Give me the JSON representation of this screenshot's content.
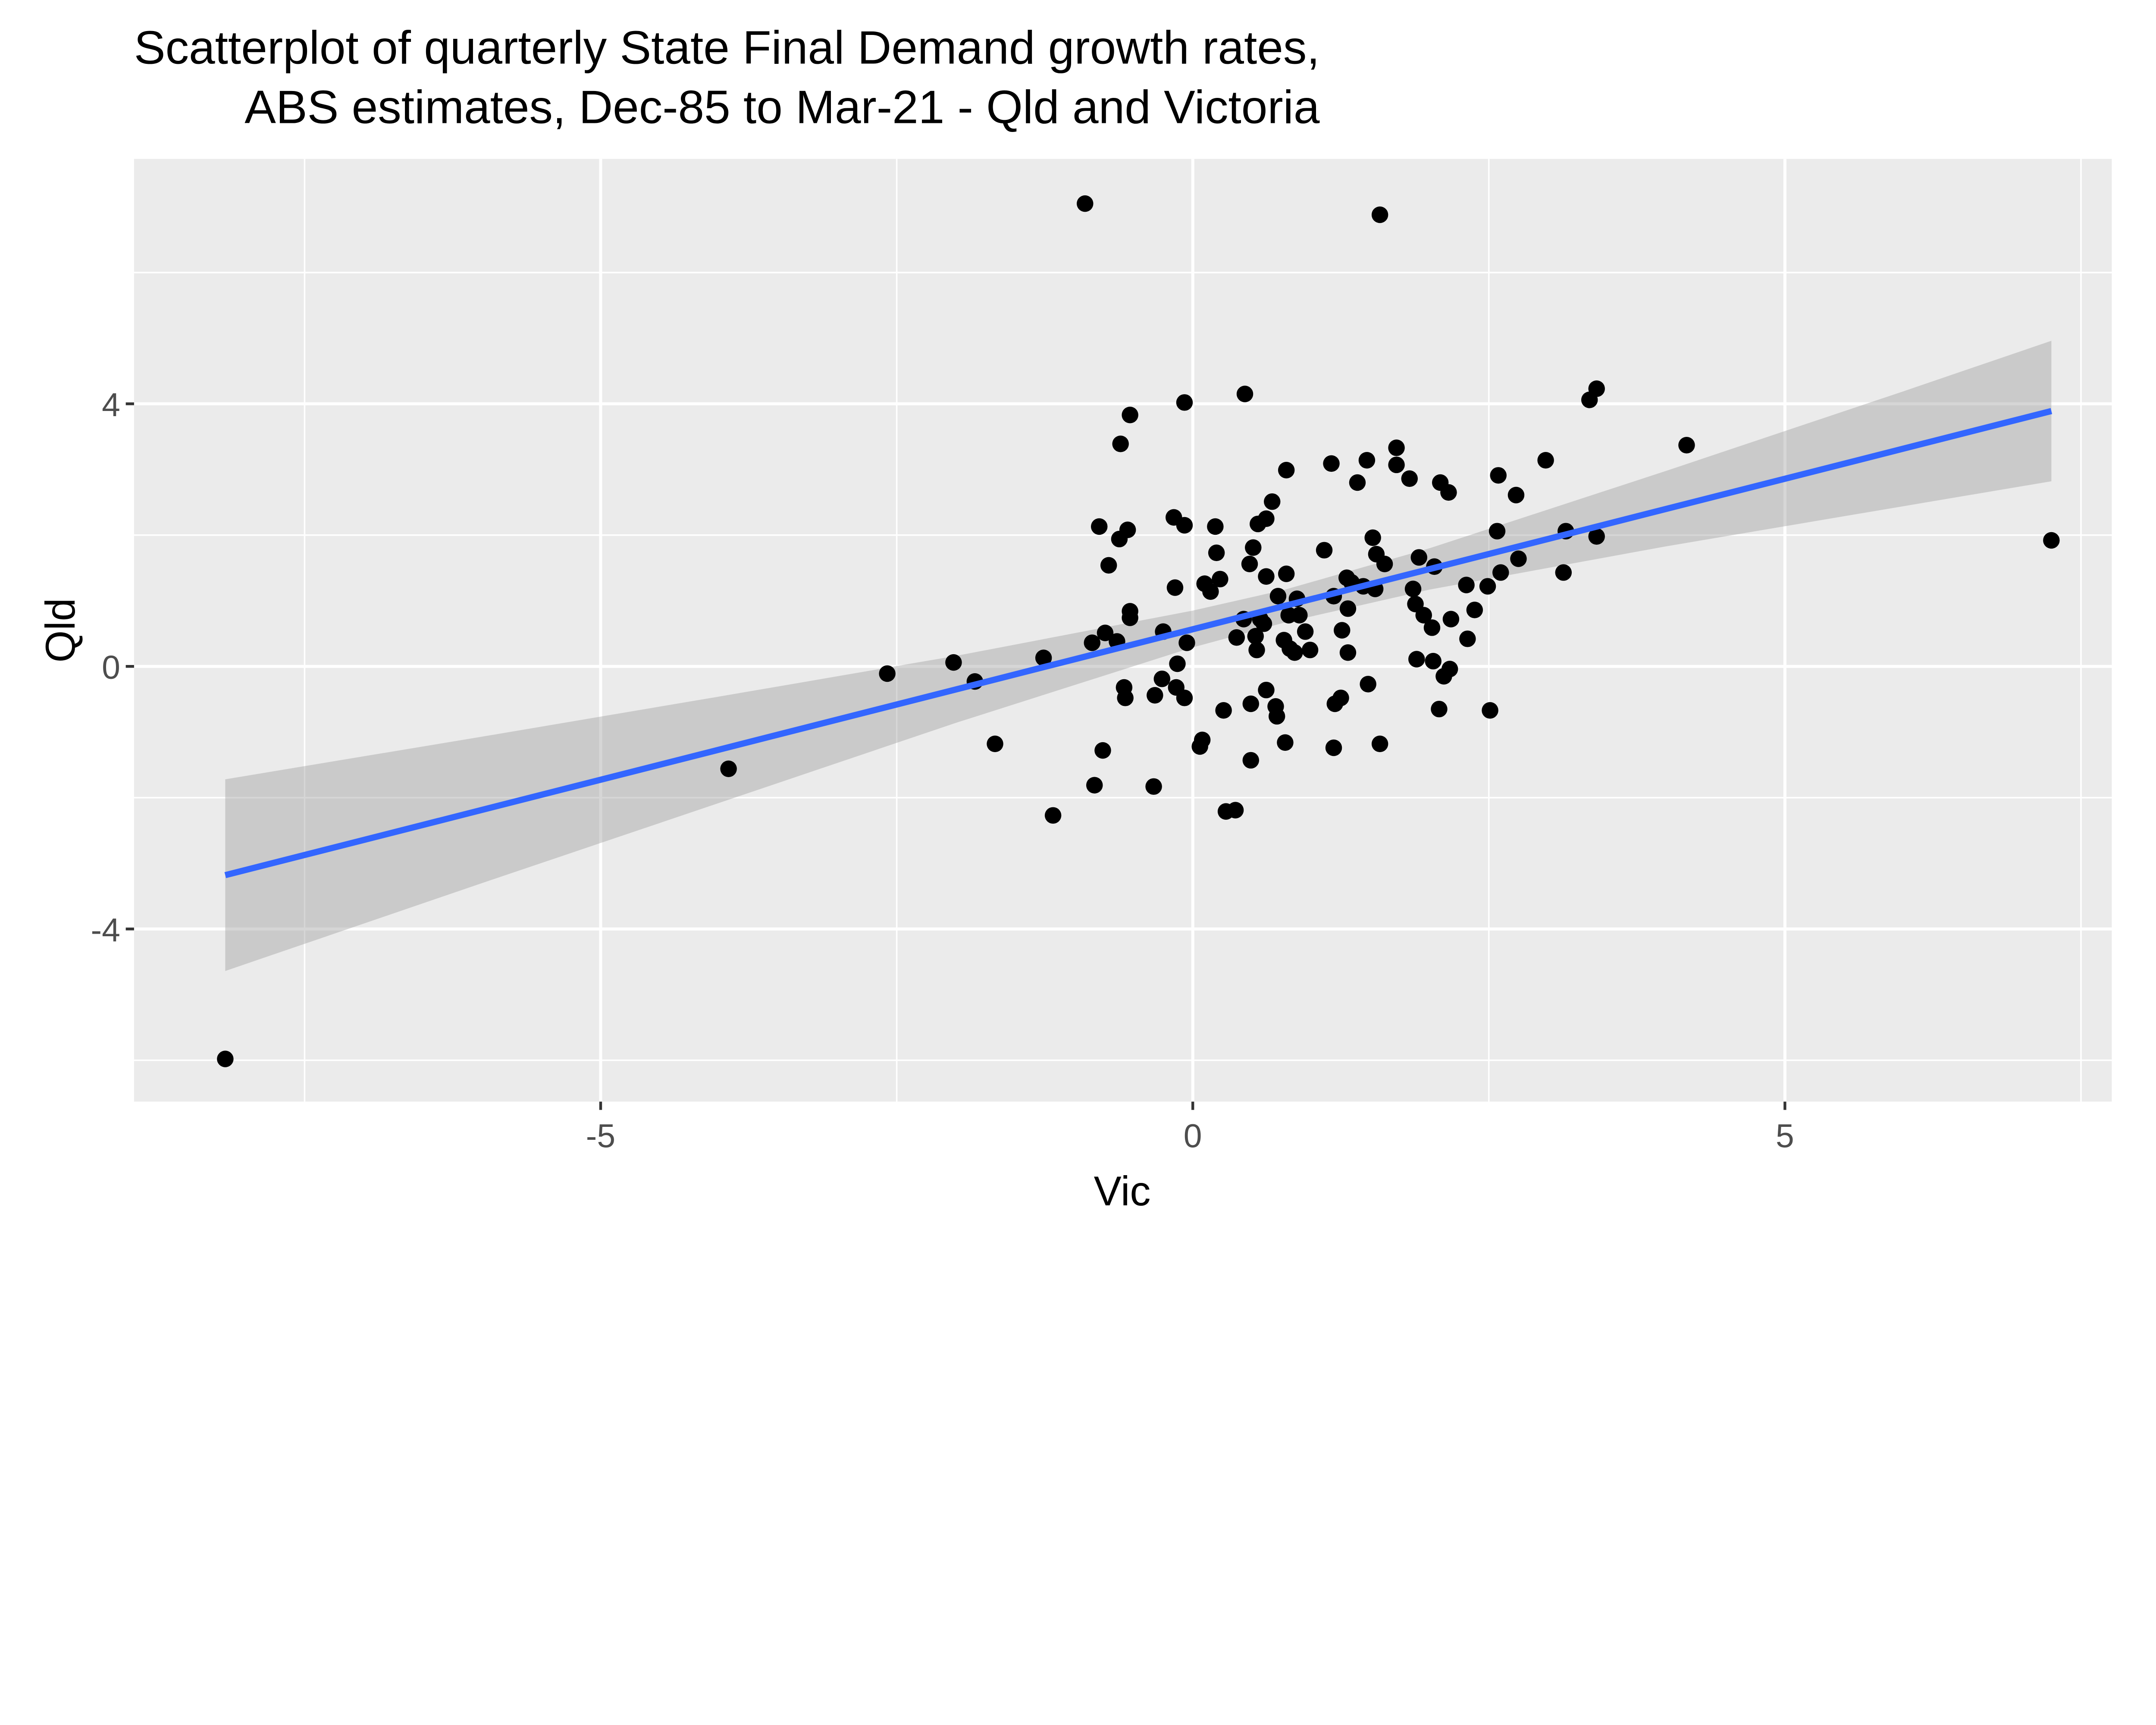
{
  "chart_data": {
    "type": "scatter",
    "title": [
      "Scatterplot of quarterly State Final Demand growth rates,",
      "ABS estimates, Dec-85 to Mar-21 - Qld and Victoria"
    ],
    "xlabel": "Vic",
    "ylabel": "Qld",
    "xlim": [
      -8.94,
      7.76
    ],
    "ylim": [
      -6.63,
      7.73
    ],
    "xticks": [
      -5,
      0,
      5
    ],
    "yticks": [
      -4,
      0,
      4
    ],
    "x_minor": [
      -7.5,
      -2.5,
      2.5,
      7.5
    ],
    "y_minor": [
      -6,
      -2,
      2,
      6
    ],
    "grid": true,
    "colors": {
      "panel": "#ebebeb",
      "grid": "#ffffff",
      "points": "#000000",
      "fit_line": "#3366ff",
      "ci_band": "#999999"
    },
    "points": [
      [
        -0.91,
        7.05
      ],
      [
        1.58,
        6.88
      ],
      [
        -8.17,
        -5.98
      ],
      [
        7.25,
        1.92
      ],
      [
        -3.92,
        -1.56
      ],
      [
        -2.58,
        -0.11
      ],
      [
        -2.02,
        0.06
      ],
      [
        -1.84,
        -0.23
      ],
      [
        -1.67,
        -1.18
      ],
      [
        -1.26,
        0.13
      ],
      [
        -1.18,
        -2.27
      ],
      [
        -0.85,
        0.36
      ],
      [
        -0.83,
        -1.81
      ],
      [
        -0.79,
        2.13
      ],
      [
        -0.76,
        -1.28
      ],
      [
        -0.74,
        0.51
      ],
      [
        -0.71,
        1.54
      ],
      [
        -0.64,
        0.38
      ],
      [
        -0.62,
        1.94
      ],
      [
        -0.61,
        3.39
      ],
      [
        -0.58,
        -0.32
      ],
      [
        -0.57,
        -0.48
      ],
      [
        -0.55,
        2.08
      ],
      [
        -0.53,
        3.83
      ],
      [
        -0.53,
        0.84
      ],
      [
        -0.53,
        0.74
      ],
      [
        -0.33,
        -1.83
      ],
      [
        -0.32,
        -0.44
      ],
      [
        -0.26,
        -0.19
      ],
      [
        -0.25,
        0.53
      ],
      [
        -0.16,
        2.27
      ],
      [
        -0.15,
        1.2
      ],
      [
        -0.14,
        -0.32
      ],
      [
        -0.13,
        0.04
      ],
      [
        -0.07,
        2.15
      ],
      [
        -0.07,
        4.02
      ],
      [
        -0.07,
        -0.48
      ],
      [
        -0.05,
        0.36
      ],
      [
        0.06,
        -1.22
      ],
      [
        0.08,
        -1.12
      ],
      [
        0.1,
        1.26
      ],
      [
        0.15,
        1.14
      ],
      [
        0.19,
        2.13
      ],
      [
        0.2,
        1.73
      ],
      [
        0.23,
        1.33
      ],
      [
        0.26,
        -0.67
      ],
      [
        0.28,
        -2.21
      ],
      [
        0.36,
        -2.19
      ],
      [
        0.37,
        0.44
      ],
      [
        0.43,
        0.72
      ],
      [
        0.44,
        4.15
      ],
      [
        0.48,
        1.56
      ],
      [
        0.49,
        -0.57
      ],
      [
        0.49,
        -1.43
      ],
      [
        0.51,
        1.81
      ],
      [
        0.53,
        0.46
      ],
      [
        0.54,
        0.25
      ],
      [
        0.55,
        2.17
      ],
      [
        0.57,
        0.72
      ],
      [
        0.6,
        0.65
      ],
      [
        0.62,
        2.25
      ],
      [
        0.62,
        -0.36
      ],
      [
        0.62,
        1.37
      ],
      [
        0.67,
        2.51
      ],
      [
        0.7,
        -0.61
      ],
      [
        0.71,
        -0.76
      ],
      [
        0.72,
        1.07
      ],
      [
        0.77,
        0.4
      ],
      [
        0.78,
        -1.16
      ],
      [
        0.79,
        2.99
      ],
      [
        0.79,
        1.41
      ],
      [
        0.81,
        0.78
      ],
      [
        0.82,
        0.27
      ],
      [
        0.86,
        0.21
      ],
      [
        0.88,
        1.03
      ],
      [
        0.9,
        0.78
      ],
      [
        0.95,
        0.53
      ],
      [
        0.99,
        0.25
      ],
      [
        1.11,
        1.77
      ],
      [
        1.17,
        3.09
      ],
      [
        1.19,
        1.07
      ],
      [
        1.19,
        -1.24
      ],
      [
        1.2,
        -0.57
      ],
      [
        1.25,
        -0.48
      ],
      [
        1.26,
        0.55
      ],
      [
        1.3,
        1.35
      ],
      [
        1.31,
        0.88
      ],
      [
        1.31,
        0.21
      ],
      [
        1.34,
        1.28
      ],
      [
        1.39,
        2.8
      ],
      [
        1.44,
        1.22
      ],
      [
        1.47,
        3.14
      ],
      [
        1.48,
        -0.27
      ],
      [
        1.52,
        1.96
      ],
      [
        1.54,
        1.18
      ],
      [
        1.55,
        1.71
      ],
      [
        1.58,
        -1.18
      ],
      [
        1.62,
        1.56
      ],
      [
        1.72,
        3.33
      ],
      [
        1.72,
        3.07
      ],
      [
        1.83,
        2.86
      ],
      [
        1.86,
        1.18
      ],
      [
        1.88,
        0.95
      ],
      [
        1.89,
        0.11
      ],
      [
        1.91,
        1.66
      ],
      [
        1.95,
        0.78
      ],
      [
        2.02,
        0.59
      ],
      [
        2.03,
        0.08
      ],
      [
        2.04,
        1.52
      ],
      [
        2.08,
        -0.65
      ],
      [
        2.09,
        2.8
      ],
      [
        2.12,
        -0.15
      ],
      [
        2.16,
        2.65
      ],
      [
        2.17,
        -0.04
      ],
      [
        2.18,
        0.72
      ],
      [
        2.31,
        1.24
      ],
      [
        2.32,
        0.42
      ],
      [
        2.38,
        0.86
      ],
      [
        2.49,
        1.22
      ],
      [
        2.51,
        -0.67
      ],
      [
        2.57,
        2.06
      ],
      [
        2.58,
        2.91
      ],
      [
        2.6,
        1.43
      ],
      [
        2.73,
        2.61
      ],
      [
        2.75,
        1.64
      ],
      [
        2.98,
        3.14
      ],
      [
        3.13,
        1.43
      ],
      [
        3.15,
        2.06
      ],
      [
        3.35,
        4.06
      ],
      [
        3.41,
        4.23
      ],
      [
        3.41,
        1.98
      ],
      [
        4.17,
        3.37
      ]
    ],
    "fit": {
      "method": "linear",
      "x": [
        -8.17,
        7.25
      ],
      "y": [
        -3.18,
        3.89
      ],
      "band": {
        "x": [
          -8.17,
          -6,
          -4,
          -2,
          0,
          0.78,
          2,
          4,
          6,
          7.25
        ],
        "lower": [
          -4.64,
          -3.3,
          -2.08,
          -0.86,
          0.29,
          0.67,
          1.17,
          1.83,
          2.44,
          2.82
        ],
        "upper": [
          -1.72,
          -1.07,
          -0.46,
          0.16,
          0.85,
          1.17,
          1.8,
          2.98,
          4.19,
          4.96
        ]
      }
    }
  }
}
